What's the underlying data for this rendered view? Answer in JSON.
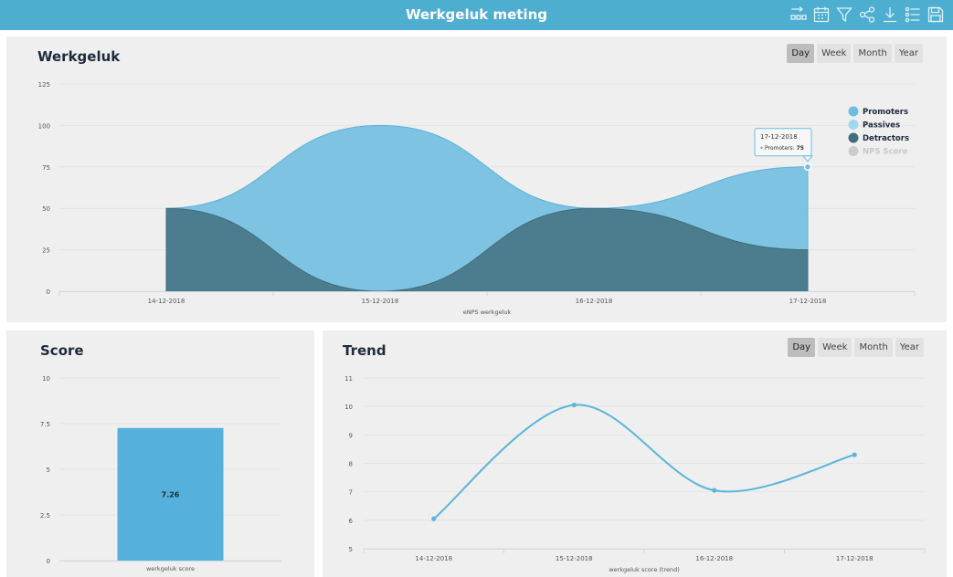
{
  "header": {
    "title": "Werkgeluk meting",
    "toolbar_icons": [
      "layout-icon",
      "calendar-icon",
      "filter-icon",
      "share-icon",
      "download-icon",
      "list-settings-icon",
      "save-icon"
    ]
  },
  "range_options": [
    "Day",
    "Week",
    "Month",
    "Year"
  ],
  "range_selected": "Day",
  "panels": {
    "werkgeluk": {
      "title": "Werkgeluk"
    },
    "score": {
      "title": "Score"
    },
    "trend": {
      "title": "Trend"
    }
  },
  "colors": {
    "header": "#4eaed0",
    "promoters": "#6fbde0",
    "passives": "#9ed8ef",
    "detractors": "#3f6e7d",
    "nps_score": "#cccccc",
    "bar": "#55b1db",
    "trend_line": "#5cb5da"
  },
  "chart_data": [
    {
      "type": "area",
      "title": "",
      "xlabel": "eNPS werkgeluk",
      "ylabel": "",
      "categories": [
        "14-12-2018",
        "15-12-2018",
        "16-12-2018",
        "17-12-2018"
      ],
      "ylim": [
        0,
        125
      ],
      "yticks": [
        0,
        25,
        50,
        75,
        100,
        125
      ],
      "series": [
        {
          "name": "Promoters",
          "values": [
            50,
            100,
            50,
            75
          ]
        },
        {
          "name": "Passives",
          "values": [
            null,
            null,
            null,
            null
          ]
        },
        {
          "name": "Detractors",
          "values": [
            50,
            0,
            50,
            25
          ]
        },
        {
          "name": "NPS Score",
          "values": [
            null,
            null,
            null,
            null
          ]
        }
      ],
      "legend_position": "right",
      "tooltip": {
        "date": "17-12-2018",
        "series": "Promoters",
        "label": "Promoters",
        "value": "75"
      }
    },
    {
      "type": "bar",
      "title": "",
      "categories": [
        "werkgeluk score"
      ],
      "values": [
        7.26
      ],
      "data_labels": [
        "7.26"
      ],
      "ylim": [
        0,
        10
      ],
      "yticks": [
        0,
        2.5,
        5,
        7.5,
        10
      ],
      "yticklabels": [
        "0",
        "2.5",
        "5",
        "7.5",
        "10"
      ]
    },
    {
      "type": "line",
      "title": "",
      "xlabel": "werkgeluk score (trend)",
      "categories": [
        "14-12-2018",
        "15-12-2018",
        "16-12-2018",
        "17-12-2018"
      ],
      "values": [
        6.05,
        10.05,
        7.05,
        8.3
      ],
      "ylim": [
        5,
        11
      ],
      "yticks": [
        5,
        6,
        7,
        8,
        9,
        10,
        11
      ]
    }
  ]
}
